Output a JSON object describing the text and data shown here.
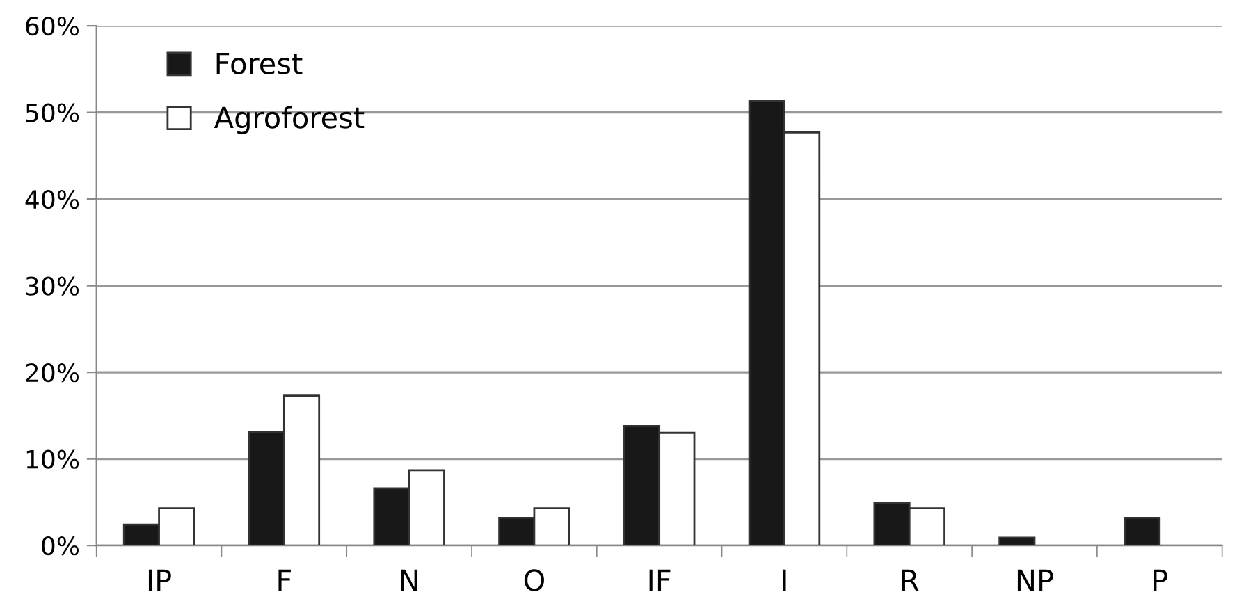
{
  "chart_data": {
    "type": "bar",
    "categories": [
      "IP",
      "F",
      "N",
      "O",
      "IF",
      "I",
      "R",
      "NP",
      "P"
    ],
    "series": [
      {
        "name": "Forest",
        "color": "#181818",
        "values": [
          2.4,
          13.1,
          6.6,
          3.2,
          13.8,
          51.3,
          4.9,
          0.9,
          3.2
        ]
      },
      {
        "name": "Agroforest",
        "color": "#ffffff",
        "values": [
          4.3,
          17.3,
          8.7,
          4.3,
          13.0,
          47.7,
          4.3,
          null,
          null
        ]
      }
    ],
    "ylim": [
      0,
      60
    ],
    "yticks": [
      {
        "value": 0,
        "label": "0%"
      },
      {
        "value": 10,
        "label": "10%"
      },
      {
        "value": 20,
        "label": "20%"
      },
      {
        "value": 30,
        "label": "30%"
      },
      {
        "value": 40,
        "label": "40%"
      },
      {
        "value": 50,
        "label": "50%"
      },
      {
        "value": 60,
        "label": "60%"
      }
    ],
    "grid": "y",
    "legend": "top left"
  }
}
